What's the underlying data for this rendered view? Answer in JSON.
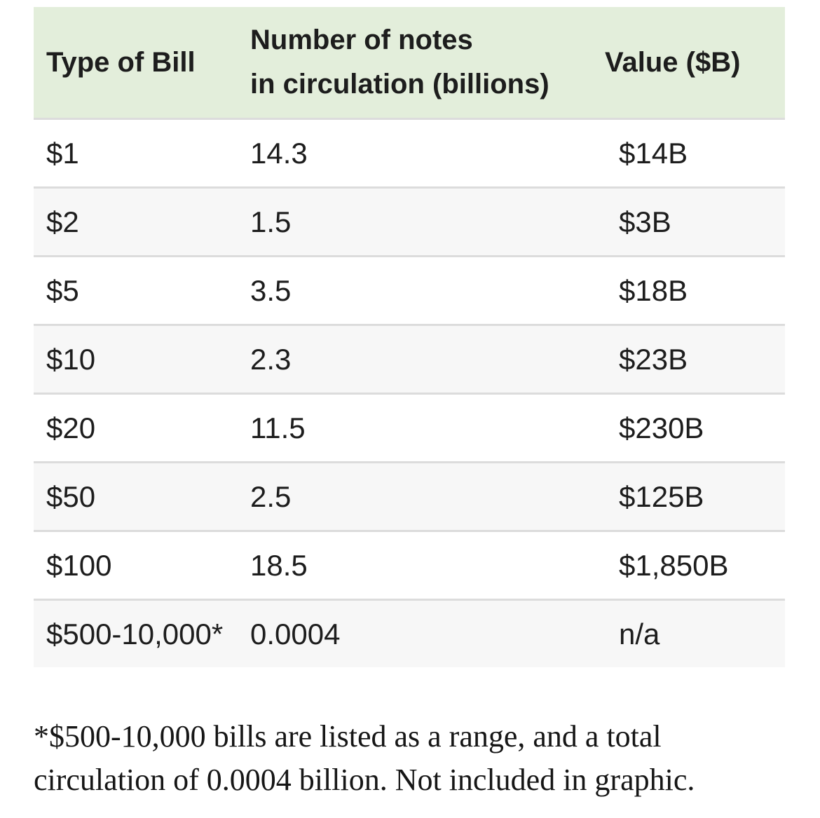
{
  "table": {
    "header": {
      "col1": "Type of Bill",
      "col2_line1": "Number of notes",
      "col2_line2": "in circulation (billions)",
      "col3": "Value ($B)"
    },
    "rows": [
      {
        "bill": "$1",
        "notes": "14.3",
        "value": "$14B"
      },
      {
        "bill": "$2",
        "notes": "1.5",
        "value": "$3B"
      },
      {
        "bill": "$5",
        "notes": "3.5",
        "value": "$18B"
      },
      {
        "bill": "$10",
        "notes": "2.3",
        "value": "$23B"
      },
      {
        "bill": "$20",
        "notes": "11.5",
        "value": "$230B"
      },
      {
        "bill": "$50",
        "notes": "2.5",
        "value": "$125B"
      },
      {
        "bill": "$100",
        "notes": "18.5",
        "value": "$1,850B"
      },
      {
        "bill": "$500-10,000*",
        "notes": "0.0004",
        "value": "n/a"
      }
    ]
  },
  "footnote": {
    "line1": "*$500-10,000 bills are listed as a range, and a total",
    "line2": "circulation of 0.0004 billion. Not included in graphic."
  },
  "colors": {
    "header_bg": "#e3eedb",
    "row_alt_bg": "#f7f7f7",
    "separator": "#dcdcdc",
    "text": "#1d1d1d"
  },
  "chart_data": {
    "type": "table",
    "columns": [
      "Type of Bill",
      "Number of notes in circulation (billions)",
      "Value ($B)"
    ],
    "rows": [
      [
        "$1",
        14.3,
        "$14B"
      ],
      [
        "$2",
        1.5,
        "$3B"
      ],
      [
        "$5",
        3.5,
        "$18B"
      ],
      [
        "$10",
        2.3,
        "$23B"
      ],
      [
        "$20",
        11.5,
        "$230B"
      ],
      [
        "$50",
        2.5,
        "$125B"
      ],
      [
        "$100",
        18.5,
        "$1,850B"
      ],
      [
        "$500-10,000*",
        0.0004,
        "n/a"
      ]
    ],
    "footnote": "*$500-10,000 bills are listed as a range, and a total circulation of 0.0004 billion. Not included in graphic."
  }
}
